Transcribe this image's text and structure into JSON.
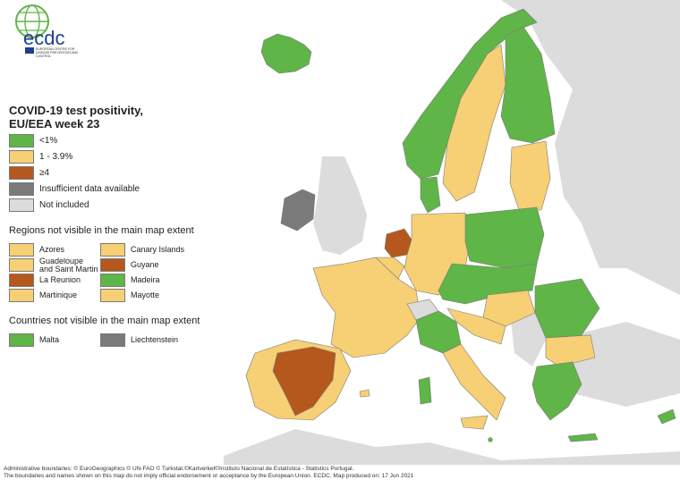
{
  "logo": {
    "text": "ecdc",
    "tagline": "EUROPEAN CENTRE FOR DISEASE PREVENTION AND CONTROL"
  },
  "legend": {
    "title": "COVID-19 test positivity, EU/EEA week 23",
    "categories": [
      {
        "label": "<1%",
        "color": "#5fb547"
      },
      {
        "label": "1 - 3.9%",
        "color": "#f7cf74"
      },
      {
        "label": "≥4",
        "color": "#b4581d"
      },
      {
        "label": "Insufficient data available",
        "color": "#7a7a7a"
      },
      {
        "label": "Not included",
        "color": "#dcdcdc"
      }
    ],
    "regions_title": "Regions not visible in the main map extent",
    "regions": [
      {
        "label": "Azores",
        "color": "#f7cf74"
      },
      {
        "label": "Canary Islands",
        "color": "#f7cf74"
      },
      {
        "label": "Guadeloupe and Saint Martin",
        "color": "#f7cf74"
      },
      {
        "label": "Guyane",
        "color": "#b4581d"
      },
      {
        "label": "La Reunion",
        "color": "#b4581d"
      },
      {
        "label": "Madeira",
        "color": "#5fb547"
      },
      {
        "label": "Martinique",
        "color": "#f7cf74"
      },
      {
        "label": "Mayotte",
        "color": "#f7cf74"
      }
    ],
    "countries_title": "Countries not visible in the main map extent",
    "countries": [
      {
        "label": "Malta",
        "color": "#5fb547"
      },
      {
        "label": "Liechtenstein",
        "color": "#7a7a7a"
      }
    ]
  },
  "footer": {
    "line1": "Administrative boundaries: © EuroGeographics © UN-FAO © Turkstat.©Kartverket©Instituto Nacional de Estatística - Statistics Portugal.",
    "line2": "The boundaries and names shown on this map do not imply official endorsement or acceptance by the European Union. ECDC. Map produced on: 17 Jun 2021"
  },
  "colors": {
    "green": "#5fb547",
    "yellow": "#f7cf74",
    "brown": "#b4581d",
    "gray": "#7a7a7a",
    "light": "#dcdcdc",
    "border": "#8a8a8a"
  }
}
